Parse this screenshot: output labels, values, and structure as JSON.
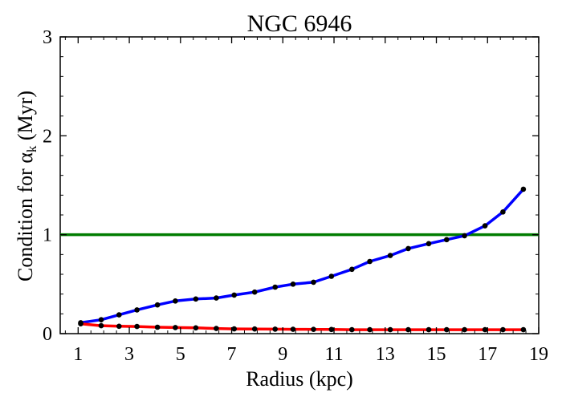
{
  "chart_data": {
    "type": "line",
    "title": "NGC 6946",
    "xlabel": "Radius (kpc)",
    "ylabel_prefix": "Condition for α",
    "ylabel_sub": "k",
    "ylabel_suffix": " (Myr)",
    "xlim": [
      0.3,
      19
    ],
    "ylim": [
      0,
      3
    ],
    "xticks": [
      1,
      3,
      5,
      7,
      9,
      11,
      13,
      15,
      17,
      19
    ],
    "xtick_labels": [
      "1",
      "3",
      "5",
      "7",
      "9",
      "11",
      "13",
      "15",
      "17",
      "19"
    ],
    "yticks": [
      0,
      1,
      2,
      3
    ],
    "ytick_labels": [
      "0",
      "1",
      "2",
      "3"
    ],
    "grid": false,
    "hline": {
      "y": 1.0,
      "color": "#007d00"
    },
    "colors": {
      "blue": "#0000ff",
      "red": "#ff0000",
      "green": "#007d00",
      "marker": "#000000"
    },
    "series": [
      {
        "color": "#0000ff",
        "x": [
          1.1,
          1.9,
          2.6,
          3.3,
          4.1,
          4.8,
          5.6,
          6.4,
          7.1,
          7.9,
          8.7,
          9.4,
          10.2,
          10.9,
          11.7,
          12.4,
          13.2,
          13.9,
          14.7,
          15.4,
          16.1,
          16.9,
          17.6,
          18.4
        ],
        "values": [
          0.11,
          0.14,
          0.19,
          0.24,
          0.29,
          0.33,
          0.35,
          0.36,
          0.39,
          0.42,
          0.47,
          0.5,
          0.52,
          0.58,
          0.65,
          0.73,
          0.79,
          0.86,
          0.91,
          0.95,
          0.99,
          1.09,
          1.23,
          1.46
        ]
      },
      {
        "color": "#ff0000",
        "x": [
          1.1,
          1.9,
          2.6,
          3.3,
          4.1,
          4.8,
          5.6,
          6.4,
          7.1,
          7.9,
          8.7,
          9.4,
          10.2,
          10.9,
          11.7,
          12.4,
          13.2,
          13.9,
          14.7,
          15.4,
          16.1,
          16.9,
          17.6,
          18.4
        ],
        "values": [
          0.1,
          0.08,
          0.075,
          0.072,
          0.065,
          0.062,
          0.058,
          0.052,
          0.048,
          0.047,
          0.045,
          0.044,
          0.043,
          0.042,
          0.04,
          0.04,
          0.04,
          0.04,
          0.04,
          0.04,
          0.04,
          0.04,
          0.04,
          0.04
        ]
      }
    ]
  }
}
